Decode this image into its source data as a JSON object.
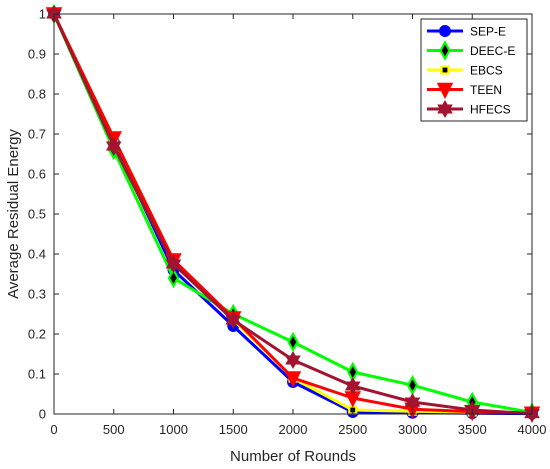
{
  "chart_data": {
    "type": "line",
    "title": "",
    "xlabel": "Number of Rounds",
    "ylabel": "Average Residual Energy",
    "xlim": [
      0,
      4000
    ],
    "ylim": [
      0,
      1
    ],
    "xticks": [
      "0",
      "500",
      "1000",
      "1500",
      "2000",
      "2500",
      "3000",
      "3500",
      "4000"
    ],
    "yticks": [
      "0",
      "0.1",
      "0.2",
      "0.3",
      "0.4",
      "0.5",
      "0.6",
      "0.7",
      "0.8",
      "0.9",
      "1"
    ],
    "grid": false,
    "legend_position": "top-right",
    "x": [
      0,
      500,
      1000,
      1500,
      2000,
      2500,
      3000,
      3500,
      4000
    ],
    "series": [
      {
        "name": "SEP-E",
        "color": "#0000ff",
        "marker": "circle",
        "values": [
          1.0,
          0.68,
          0.36,
          0.22,
          0.08,
          0.005,
          0.003,
          0.002,
          0.001
        ]
      },
      {
        "name": "DEEC-E",
        "color": "#00ff00",
        "marker": "diamond",
        "values": [
          1.0,
          0.66,
          0.34,
          0.25,
          0.18,
          0.105,
          0.072,
          0.03,
          0.004
        ]
      },
      {
        "name": "EBCS",
        "color": "#ffff00",
        "marker": "square",
        "values": [
          1.0,
          0.69,
          0.385,
          0.235,
          0.09,
          0.01,
          0.007,
          0.005,
          0.002
        ]
      },
      {
        "name": "TEEN",
        "color": "#ff0000",
        "marker": "triangle-down",
        "values": [
          1.0,
          0.69,
          0.385,
          0.24,
          0.09,
          0.04,
          0.012,
          0.006,
          0.002
        ]
      },
      {
        "name": "HFECS",
        "color": "#a2142f",
        "marker": "hexagram",
        "values": [
          1.0,
          0.67,
          0.375,
          0.235,
          0.135,
          0.07,
          0.03,
          0.01,
          0.001
        ]
      }
    ]
  }
}
